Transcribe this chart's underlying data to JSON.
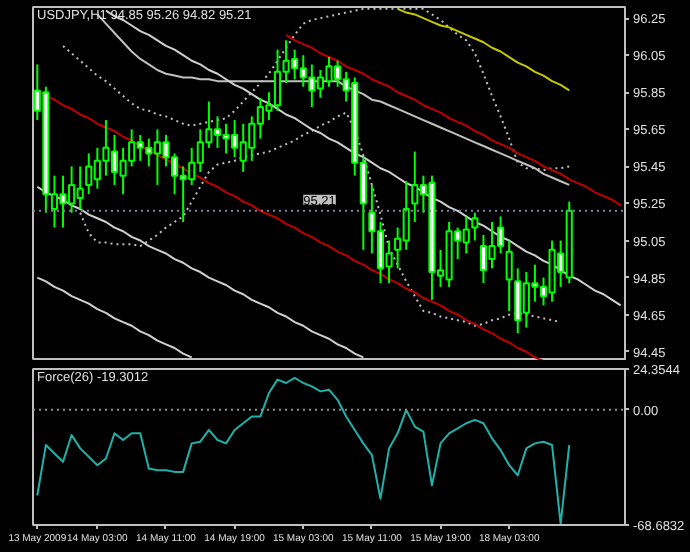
{
  "chart_data": [
    {
      "type": "candlestick",
      "title": "USDJPY,H1  94.85 95.26 94.82 95.21",
      "tick_labels": "y",
      "categories": [
        null,
        null,
        null,
        null,
        null,
        null,
        null,
        null,
        null,
        null,
        null,
        null,
        null,
        null,
        null,
        null,
        null,
        null,
        null,
        null,
        null,
        null,
        null,
        null,
        null,
        null,
        null,
        null,
        null,
        null,
        null,
        null,
        null,
        null,
        null,
        null,
        null,
        null,
        null,
        null,
        null,
        null,
        null,
        null,
        null,
        null,
        null,
        null,
        null,
        null,
        null,
        null,
        null,
        null,
        null,
        null,
        null,
        null,
        null,
        null,
        null,
        null,
        null,
        null,
        null,
        null,
        null,
        null,
        null
      ],
      "ohlc": [
        [
          95.86,
          96.0,
          95.7,
          95.75
        ],
        [
          95.85,
          95.88,
          95.2,
          95.3
        ],
        [
          95.22,
          95.4,
          95.12,
          95.3
        ],
        [
          95.3,
          95.4,
          95.12,
          95.25
        ],
        [
          95.25,
          95.45,
          95.2,
          95.35
        ],
        [
          95.28,
          95.45,
          95.22,
          95.33
        ],
        [
          95.35,
          95.52,
          95.3,
          95.45
        ],
        [
          95.38,
          95.55,
          95.33,
          95.48
        ],
        [
          95.48,
          95.7,
          95.4,
          95.55
        ],
        [
          95.53,
          95.62,
          95.35,
          95.42
        ],
        [
          95.4,
          95.55,
          95.3,
          95.48
        ],
        [
          95.48,
          95.65,
          95.45,
          95.58
        ],
        [
          95.58,
          95.62,
          95.48,
          95.55
        ],
        [
          95.55,
          95.6,
          95.45,
          95.52
        ],
        [
          95.52,
          95.65,
          95.35,
          95.58
        ],
        [
          95.58,
          95.62,
          95.45,
          95.5
        ],
        [
          95.5,
          95.52,
          95.3,
          95.4
        ],
        [
          95.4,
          95.45,
          95.15,
          95.38
        ],
        [
          95.38,
          95.55,
          95.35,
          95.47
        ],
        [
          95.47,
          95.65,
          95.42,
          95.58
        ],
        [
          95.58,
          95.8,
          95.55,
          95.65
        ],
        [
          95.65,
          95.72,
          95.55,
          95.62
        ],
        [
          95.62,
          95.68,
          95.52,
          95.6
        ],
        [
          95.62,
          95.7,
          95.5,
          95.55
        ],
        [
          95.48,
          95.68,
          95.42,
          95.58
        ],
        [
          95.55,
          95.72,
          95.48,
          95.68
        ],
        [
          95.68,
          95.82,
          95.6,
          95.77
        ],
        [
          95.75,
          95.85,
          95.7,
          95.78
        ],
        [
          95.78,
          96.08,
          95.75,
          95.96
        ],
        [
          95.96,
          96.13,
          95.9,
          96.02
        ],
        [
          96.03,
          96.08,
          95.92,
          95.98
        ],
        [
          95.98,
          96.05,
          95.88,
          95.93
        ],
        [
          95.93,
          96.0,
          95.77,
          95.86
        ],
        [
          95.87,
          95.97,
          95.82,
          95.93
        ],
        [
          95.91,
          96.04,
          95.88,
          95.99
        ],
        [
          95.99,
          96.02,
          95.88,
          95.92
        ],
        [
          95.92,
          95.96,
          95.8,
          95.86
        ],
        [
          95.9,
          95.93,
          95.4,
          95.47
        ],
        [
          95.47,
          95.5,
          95.0,
          95.25
        ],
        [
          95.2,
          95.35,
          94.98,
          95.1
        ],
        [
          95.1,
          95.15,
          94.82,
          94.9
        ],
        [
          94.91,
          95.05,
          94.82,
          94.98
        ],
        [
          95.0,
          95.12,
          94.9,
          95.06
        ],
        [
          95.05,
          95.37,
          95.0,
          95.22
        ],
        [
          95.25,
          95.53,
          95.15,
          95.35
        ],
        [
          95.35,
          95.4,
          95.2,
          95.3
        ],
        [
          95.36,
          95.4,
          94.73,
          94.88
        ],
        [
          94.86,
          95.0,
          94.8,
          94.89
        ],
        [
          94.84,
          95.15,
          94.8,
          95.1
        ],
        [
          95.1,
          95.12,
          94.95,
          95.05
        ],
        [
          95.04,
          95.18,
          94.98,
          95.11
        ],
        [
          95.12,
          95.2,
          95.05,
          95.17
        ],
        [
          95.02,
          95.08,
          94.82,
          94.89
        ],
        [
          94.95,
          95.15,
          94.9,
          95.02
        ],
        [
          95.12,
          95.18,
          94.98,
          95.02
        ],
        [
          94.84,
          95.05,
          94.67,
          94.99
        ],
        [
          94.83,
          94.9,
          94.55,
          94.62
        ],
        [
          94.66,
          94.88,
          94.58,
          94.82
        ],
        [
          94.82,
          94.92,
          94.72,
          94.8
        ],
        [
          94.8,
          94.85,
          94.7,
          94.75
        ],
        [
          94.77,
          95.05,
          94.72,
          95.0
        ],
        [
          94.98,
          95.05,
          94.8,
          94.88
        ],
        [
          94.85,
          95.26,
          94.82,
          95.21
        ],
        null,
        null,
        null,
        null,
        null,
        null
      ],
      "color": "#00ff00",
      "colors": [
        "#ffffff",
        "#ffffff",
        "#000000",
        "#ffffff",
        "#000000",
        "#000000",
        "#000000",
        "#000000",
        "#000000",
        "#ffffff",
        "#000000",
        "#000000",
        "#ffffff",
        "#ffffff",
        "#000000",
        "#ffffff",
        "#ffffff",
        "#ffffff",
        "#000000",
        "#000000",
        "#000000",
        "#ffffff",
        "#ffffff",
        "#ffffff",
        "#000000",
        "#000000",
        "#000000",
        "#000000",
        "#000000",
        "#000000",
        "#ffffff",
        "#ffffff",
        "#ffffff",
        "#000000",
        "#000000",
        "#ffffff",
        "#ffffff",
        "#ffffff",
        "#ffffff",
        "#ffffff",
        "#ffffff",
        "#000000",
        "#000000",
        "#000000",
        "#000000",
        "#ffffff",
        "#ffffff",
        "#000000",
        "#000000",
        "#ffffff",
        "#000000",
        "#000000",
        "#ffffff",
        "#000000",
        "#ffffff",
        "#000000",
        "#ffffff",
        "#000000",
        "#ffffff",
        "#ffffff",
        "#000000",
        "#ffffff",
        "#000000",
        null,
        null,
        null,
        null,
        null,
        null
      ],
      "series": [
        {
          "type": "line",
          "color": "#c0c0c0",
          "line_style": "solid",
          "values": [
            null,
            null,
            null,
            null,
            null,
            null,
            null,
            96.27,
            96.22,
            96.17,
            96.12,
            96.07,
            96.03,
            96.0,
            95.97,
            95.95,
            95.94,
            95.93,
            95.93,
            95.92,
            95.92,
            95.91,
            95.91,
            95.91,
            95.91,
            95.91,
            95.91,
            95.91,
            95.91,
            95.91,
            95.91,
            95.91,
            95.91,
            95.91,
            95.91,
            95.91,
            95.88,
            95.86,
            95.84,
            95.81,
            95.8,
            95.78,
            95.76,
            95.74,
            95.72,
            95.7,
            95.68,
            95.66,
            95.64,
            95.62,
            95.6,
            95.58,
            95.56,
            95.54,
            95.52,
            95.5,
            95.48,
            95.46,
            95.44,
            95.41,
            95.39,
            95.37,
            95.35,
            null,
            null,
            null,
            null,
            null,
            null
          ]
        },
        {
          "type": "line",
          "color": "#c0c0c0",
          "line_style": "dotted",
          "values": [
            null,
            null,
            null,
            96.1,
            96.06,
            96.02,
            95.98,
            95.94,
            95.91,
            95.87,
            95.83,
            95.79,
            95.76,
            95.75,
            95.73,
            95.72,
            95.7,
            95.68,
            95.67,
            95.68,
            95.69,
            95.7,
            95.71,
            95.75,
            95.8,
            95.85,
            95.9,
            95.95,
            96.02,
            96.09,
            96.16,
            96.22,
            96.24,
            96.25,
            96.26,
            96.27,
            96.28,
            96.29,
            96.3,
            96.3,
            96.3,
            96.3,
            96.3,
            96.3,
            96.3,
            96.3,
            96.27,
            96.24,
            96.2,
            96.16,
            96.13,
            96.06,
            95.95,
            95.83,
            95.72,
            95.6,
            95.47,
            95.44,
            95.44,
            95.43,
            95.44,
            95.44,
            95.45,
            null,
            null,
            null,
            null,
            null,
            null
          ]
        },
        {
          "type": "line",
          "color": "#c0c0c0",
          "line_style": "dotted",
          "values": [
            null,
            null,
            null,
            null,
            null,
            95.2,
            95.09,
            95.04,
            95.04,
            95.03,
            95.03,
            95.03,
            95.02,
            95.05,
            95.08,
            95.12,
            95.15,
            95.18,
            95.26,
            95.34,
            95.42,
            95.46,
            95.47,
            95.48,
            95.5,
            95.51,
            95.52,
            95.53,
            95.55,
            95.57,
            95.59,
            95.62,
            95.64,
            95.67,
            95.69,
            95.72,
            95.74,
            95.65,
            95.51,
            95.35,
            95.19,
            95.01,
            94.92,
            94.83,
            94.75,
            94.67,
            94.66,
            94.64,
            94.63,
            94.62,
            94.61,
            94.59,
            94.6,
            94.62,
            94.63,
            94.65,
            94.66,
            94.65,
            94.64,
            94.63,
            94.62,
            94.61,
            null,
            null,
            null,
            null,
            null,
            null,
            null
          ]
        },
        {
          "type": "line",
          "color": "#c8c800",
          "line_style": "solid",
          "values": [
            null,
            null,
            null,
            null,
            null,
            null,
            null,
            null,
            null,
            null,
            null,
            null,
            null,
            null,
            null,
            null,
            null,
            null,
            null,
            null,
            null,
            null,
            null,
            null,
            null,
            null,
            null,
            null,
            null,
            null,
            null,
            null,
            null,
            null,
            null,
            null,
            null,
            null,
            null,
            null,
            null,
            null,
            96.3,
            96.28,
            96.27,
            96.25,
            96.23,
            96.21,
            96.2,
            96.18,
            96.16,
            96.14,
            96.12,
            96.09,
            96.07,
            96.04,
            96.01,
            95.99,
            95.96,
            95.94,
            95.91,
            95.89,
            95.86,
            null,
            null,
            null,
            null,
            null,
            null
          ]
        },
        {
          "type": "line",
          "color": "#c00000",
          "line_style": "solid",
          "values": [
            null,
            null,
            null,
            null,
            null,
            null,
            null,
            null,
            null,
            null,
            null,
            null,
            null,
            null,
            null,
            null,
            null,
            null,
            null,
            null,
            null,
            null,
            null,
            null,
            null,
            null,
            null,
            null,
            null,
            96.16,
            96.13,
            96.11,
            96.09,
            96.06,
            96.04,
            96.02,
            95.99,
            95.97,
            95.95,
            95.92,
            95.9,
            95.88,
            95.85,
            95.83,
            95.81,
            95.78,
            95.76,
            95.74,
            95.71,
            95.69,
            95.67,
            95.64,
            95.62,
            95.59,
            95.57,
            95.55,
            95.52,
            95.5,
            95.48,
            95.45,
            95.43,
            95.41,
            95.38,
            95.36,
            95.34,
            95.31,
            95.29,
            95.27,
            95.24
          ]
        },
        {
          "type": "line",
          "color": "#c00000",
          "line_style": "solid",
          "values": [
            95.86,
            95.83,
            95.81,
            95.78,
            95.76,
            95.73,
            95.71,
            95.68,
            95.66,
            95.64,
            95.61,
            95.59,
            95.56,
            95.54,
            95.51,
            95.49,
            95.46,
            95.44,
            95.41,
            95.39,
            95.36,
            95.34,
            95.31,
            95.29,
            95.26,
            95.24,
            95.21,
            95.19,
            95.17,
            95.14,
            95.12,
            95.09,
            95.07,
            95.04,
            95.02,
            94.99,
            94.97,
            94.94,
            94.92,
            94.89,
            94.87,
            94.84,
            94.82,
            94.79,
            94.77,
            94.74,
            94.72,
            94.7,
            94.67,
            94.65,
            94.62,
            94.6,
            94.57,
            94.55,
            94.52,
            94.5,
            94.47,
            94.45,
            94.42,
            94.4,
            null,
            null,
            null,
            null,
            null,
            null,
            null,
            null,
            null
          ]
        },
        {
          "type": "line",
          "color": "#d0d0d0",
          "line_style": "solid",
          "values": [
            null,
            null,
            null,
            null,
            null,
            null,
            null,
            null,
            96.29,
            96.26,
            96.24,
            96.21,
            96.18,
            96.16,
            96.13,
            96.1,
            96.08,
            96.05,
            96.02,
            96.0,
            95.97,
            95.95,
            95.92,
            95.89,
            95.87,
            95.84,
            95.81,
            95.79,
            95.76,
            95.73,
            95.71,
            95.68,
            95.65,
            95.63,
            95.6,
            95.58,
            95.55,
            95.52,
            95.5,
            95.47,
            95.44,
            95.42,
            95.39,
            95.36,
            95.34,
            95.31,
            95.28,
            95.26,
            95.23,
            95.21,
            95.18,
            95.15,
            95.13,
            95.1,
            95.07,
            95.05,
            95.02,
            94.99,
            94.97,
            94.94,
            94.92,
            94.89,
            94.86,
            94.84,
            94.81,
            94.78,
            94.76,
            94.73,
            94.7
          ]
        },
        {
          "type": "line",
          "color": "#d0d0d0",
          "line_style": "solid",
          "values": [
            95.34,
            95.31,
            95.29,
            95.27,
            95.24,
            95.22,
            95.19,
            95.17,
            95.15,
            95.12,
            95.1,
            95.07,
            95.05,
            95.02,
            95.0,
            94.98,
            94.95,
            94.93,
            94.9,
            94.88,
            94.85,
            94.83,
            94.81,
            94.78,
            94.76,
            94.73,
            94.71,
            94.69,
            94.66,
            94.64,
            94.61,
            94.59,
            94.56,
            94.54,
            94.52,
            94.49,
            94.47,
            94.44,
            94.42,
            null,
            null,
            null,
            null,
            null,
            null,
            null,
            null,
            null,
            null,
            null,
            null,
            null,
            null,
            null,
            null,
            null,
            null,
            null,
            null,
            null,
            null,
            null,
            null,
            null,
            null,
            null,
            null,
            null,
            null
          ]
        },
        {
          "type": "line",
          "color": "#d0d0d0",
          "line_style": "solid",
          "values": [
            94.85,
            94.83,
            94.8,
            94.78,
            94.75,
            94.73,
            94.71,
            94.68,
            94.66,
            94.63,
            94.61,
            94.59,
            94.56,
            94.54,
            94.51,
            94.49,
            94.47,
            94.44,
            94.42,
            null,
            null,
            null,
            null,
            null,
            null,
            null,
            null,
            null,
            null,
            null,
            null,
            null,
            null,
            null,
            null,
            null,
            null,
            null,
            null,
            null,
            null,
            null,
            null,
            null,
            null,
            null,
            null,
            null,
            null,
            null,
            null,
            null,
            null,
            null,
            null,
            null,
            null,
            null,
            null,
            null,
            null,
            null,
            null,
            null,
            null,
            null,
            null,
            null,
            null
          ]
        }
      ],
      "ylim": [
        94.4,
        96.31
      ],
      "yticks": [
        96.25,
        96.05,
        95.85,
        95.65,
        95.45,
        95.25,
        95.05,
        94.85,
        94.65,
        94.45
      ],
      "ref_lines": [
        {
          "axis": "y",
          "value": 95.21,
          "label": "95.21",
          "color": "#8080a0",
          "line_style": "dotted"
        }
      ]
    },
    {
      "type": "line",
      "title": "Force(26) -19.3012",
      "categories": [
        "13 May 2009",
        null,
        null,
        null,
        null,
        null,
        null,
        "14 May 03:00",
        null,
        null,
        null,
        null,
        null,
        null,
        null,
        "14 May 11:00",
        null,
        null,
        null,
        null,
        null,
        null,
        null,
        "14 May 19:00",
        null,
        null,
        null,
        null,
        null,
        null,
        null,
        "15 May 03:00",
        null,
        null,
        null,
        null,
        null,
        null,
        null,
        "15 May 11:00",
        null,
        null,
        null,
        null,
        null,
        null,
        null,
        "15 May 19:00",
        null,
        null,
        null,
        null,
        null,
        null,
        null,
        "18 May 03:00",
        null,
        null,
        null,
        null,
        null,
        null,
        null,
        null,
        null,
        null,
        null,
        null,
        null
      ],
      "series": [
        {
          "color": "#20b2aa",
          "values": [
            -51,
            -21,
            -26,
            -31,
            -15,
            -23,
            -28,
            -33,
            -29,
            -14,
            -18,
            -14,
            -14,
            -35,
            -36,
            -36,
            -37,
            -37,
            -20,
            -19,
            -12,
            -18,
            -20,
            -12,
            -8,
            -4,
            -4,
            10,
            18,
            16,
            19,
            16,
            14,
            11,
            12,
            6,
            -4,
            -12,
            -20,
            -27,
            -53,
            -23,
            -14,
            0,
            -10,
            -13,
            -45,
            -20,
            -14,
            -11,
            -8,
            -6,
            -8,
            -17,
            -24,
            -33,
            -39,
            -23,
            -20,
            -19,
            -21,
            -68,
            -21,
            null,
            null,
            null,
            null,
            null,
            null
          ]
        }
      ],
      "ylim": [
        -68.6832,
        24.3544
      ],
      "yticks": [
        {
          "value": 24.3544,
          "label": "24.3544"
        },
        {
          "value": 0,
          "label": "0.00"
        },
        {
          "value": -68.6832,
          "label": "-68.6832"
        }
      ],
      "ref_lines": [
        {
          "axis": "y",
          "value": 0,
          "color": "#909090",
          "line_style": "dotted"
        }
      ]
    }
  ]
}
